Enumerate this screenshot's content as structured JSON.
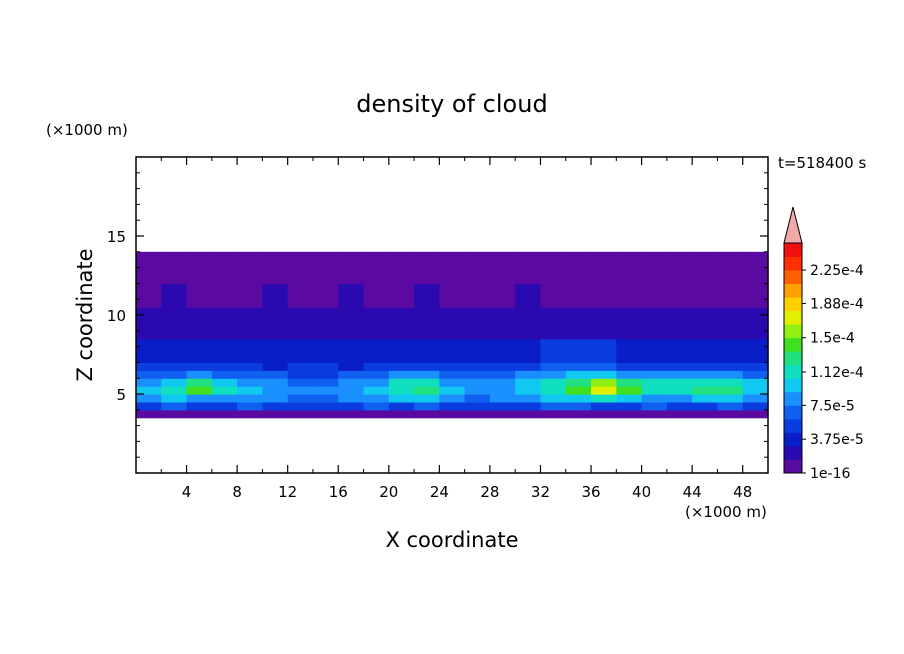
{
  "chart_data": {
    "type": "heatmap",
    "title": "density of cloud",
    "xlabel": "X coordinate",
    "ylabel": "Z coordinate",
    "x_unit": "(×1000 m)",
    "y_unit": "(×1000 m)",
    "time_label": "t=518400 s",
    "xlim": [
      0,
      50
    ],
    "ylim": [
      0,
      20
    ],
    "x_ticks": [
      4,
      8,
      12,
      16,
      20,
      24,
      28,
      32,
      36,
      40,
      44,
      48
    ],
    "y_ticks": [
      5,
      10,
      15
    ],
    "colorbar": {
      "labels": [
        "2.25e-4",
        "1.88e-4",
        "1.5e-4",
        "1.12e-4",
        "7.5e-5",
        "3.75e-5",
        "1e-16"
      ],
      "label_values": [
        0.000225,
        0.000188,
        0.00015,
        0.000112,
        7.5e-05,
        3.75e-05,
        1e-16
      ],
      "colors": [
        "#5a0aa0",
        "#2a0ab0",
        "#0a1ec8",
        "#0a3ce0",
        "#1060f0",
        "#1a90ff",
        "#10c8f0",
        "#10e0c0",
        "#20e080",
        "#40e020",
        "#90f010",
        "#e0f000",
        "#ffd000",
        "#ffa000",
        "#ff6000",
        "#ff3000",
        "#f01010"
      ],
      "over_color": "#f4a8a8"
    },
    "field": {
      "x_bins": [
        0,
        2,
        4,
        6,
        8,
        10,
        12,
        14,
        16,
        18,
        20,
        22,
        24,
        26,
        28,
        30,
        32,
        34,
        36,
        38,
        40,
        42,
        44,
        46,
        48,
        50
      ],
      "layers": [
        {
          "z_range": [
            3.5,
            4.0
          ],
          "levels": [
            1,
            1,
            1,
            1,
            1,
            1,
            1,
            1,
            1,
            1,
            1,
            1,
            1,
            1,
            1,
            1,
            1,
            1,
            1,
            1,
            1,
            1,
            1,
            1,
            1
          ]
        },
        {
          "z_range": [
            4.0,
            4.5
          ],
          "levels": [
            4,
            5,
            4,
            4,
            5,
            4,
            4,
            4,
            4,
            5,
            4,
            5,
            4,
            4,
            4,
            4,
            5,
            5,
            4,
            4,
            5,
            4,
            4,
            5,
            4
          ]
        },
        {
          "z_range": [
            4.5,
            5.0
          ],
          "levels": [
            6,
            7,
            6,
            6,
            6,
            6,
            5,
            5,
            6,
            6,
            7,
            7,
            6,
            5,
            6,
            6,
            7,
            7,
            8,
            7,
            6,
            6,
            7,
            7,
            6
          ]
        },
        {
          "z_range": [
            5.0,
            5.5
          ],
          "levels": [
            7,
            8,
            10,
            8,
            7,
            6,
            6,
            6,
            6,
            7,
            8,
            9,
            7,
            6,
            6,
            7,
            8,
            10,
            12,
            10,
            8,
            8,
            9,
            9,
            7
          ]
        },
        {
          "z_range": [
            5.5,
            6.0
          ],
          "levels": [
            6,
            7,
            9,
            7,
            6,
            6,
            5,
            5,
            6,
            6,
            8,
            8,
            6,
            6,
            6,
            7,
            8,
            9,
            11,
            9,
            8,
            8,
            8,
            8,
            7
          ]
        },
        {
          "z_range": [
            6.0,
            6.5
          ],
          "levels": [
            5,
            5,
            6,
            5,
            5,
            5,
            4,
            4,
            5,
            5,
            6,
            6,
            5,
            5,
            5,
            6,
            6,
            7,
            7,
            6,
            6,
            6,
            6,
            6,
            5
          ]
        },
        {
          "z_range": [
            6.5,
            7.0
          ],
          "levels": [
            4,
            4,
            4,
            4,
            4,
            3,
            4,
            4,
            3,
            4,
            4,
            4,
            4,
            4,
            4,
            4,
            5,
            5,
            5,
            4,
            4,
            4,
            4,
            4,
            4
          ]
        },
        {
          "z_range": [
            7.0,
            8.5
          ],
          "levels": [
            3,
            3,
            3,
            3,
            3,
            3,
            3,
            3,
            3,
            3,
            3,
            3,
            3,
            3,
            3,
            3,
            4,
            4,
            4,
            3,
            3,
            3,
            3,
            3,
            3
          ]
        },
        {
          "z_range": [
            8.5,
            10.5
          ],
          "levels": [
            2,
            2,
            2,
            2,
            2,
            2,
            2,
            2,
            2,
            2,
            2,
            2,
            2,
            2,
            2,
            2,
            2,
            2,
            2,
            2,
            2,
            2,
            2,
            2,
            2
          ]
        },
        {
          "z_range": [
            10.5,
            12.0
          ],
          "levels": [
            1,
            2,
            1,
            1,
            1,
            2,
            1,
            1,
            2,
            1,
            1,
            2,
            1,
            1,
            1,
            2,
            1,
            1,
            1,
            1,
            1,
            1,
            1,
            1,
            1
          ]
        },
        {
          "z_range": [
            12.0,
            14.0
          ],
          "levels": [
            1,
            1,
            1,
            1,
            1,
            1,
            1,
            1,
            1,
            1,
            1,
            1,
            1,
            1,
            1,
            1,
            1,
            1,
            1,
            1,
            1,
            1,
            1,
            1,
            1
          ]
        }
      ]
    }
  }
}
